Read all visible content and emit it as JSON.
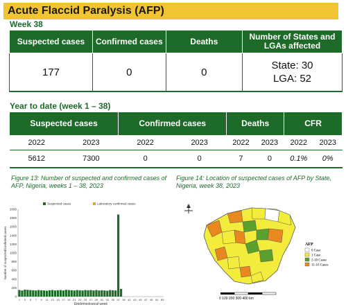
{
  "header": {
    "title": "Acute Flaccid Paralysis (AFP)"
  },
  "weekly": {
    "week_label": "Week 38",
    "headers": {
      "suspected": "Suspected cases",
      "confirmed": "Confirmed cases",
      "deaths": "Deaths",
      "states": "Number of States and LGAs affected"
    },
    "values": {
      "suspected": "177",
      "confirmed": "0",
      "deaths": "0",
      "states": "State: 30",
      "lgas": "LGA: 52"
    }
  },
  "ytd": {
    "label": "Year to date (week 1 – 38)",
    "headers": {
      "suspected": "Suspected cases",
      "confirmed": "Confirmed cases",
      "deaths": "Deaths",
      "cfr": "CFR"
    },
    "years": [
      "2022",
      "2023",
      "2022",
      "2023",
      "2022",
      "2023",
      "2022",
      "2023"
    ],
    "values": [
      "5612",
      "7300",
      "0",
      "0",
      "7",
      "0",
      "0.1%",
      "0%"
    ]
  },
  "figure13": {
    "caption": "Figure 13: Number of suspected and confirmed cases of AFP, Nigeria, weeks 1 – 38, 2023"
  },
  "figure14": {
    "caption": "Figure 14: Location of suspected cases of AFP by State, Nigeria, week 38, 2023",
    "legend_title": "AFP",
    "legend": [
      "0 Case",
      "1 Case",
      "2-10 Cases",
      "11-16 Cases"
    ],
    "scale_label": "0    100  200  300  400 km"
  },
  "colors": {
    "header_green": "#1e6a28",
    "title_yellow": "#f0c433",
    "suspected_bar": "#1e6a28",
    "confirmed_bar": "#e3a02d",
    "map_zero": "#ffffff",
    "map_one": "#f4ec3c",
    "map_two_ten": "#5aa02c",
    "map_eleven_sixteen": "#e8881e"
  },
  "chart_data": {
    "type": "bar",
    "title": "",
    "xlabel": "Epidemiological week",
    "ylabel": "Number of suspected/confirmed cases",
    "ylim": [
      0,
      2000
    ],
    "yticks": [
      0,
      200,
      400,
      600,
      800,
      1000,
      1200,
      1400,
      1600,
      1800,
      2000
    ],
    "xtick_labels": [
      "1",
      "3",
      "5",
      "7",
      "9",
      "11",
      "13",
      "15",
      "17",
      "19",
      "21",
      "23",
      "25",
      "27",
      "29",
      "31",
      "33",
      "35",
      "37",
      "39",
      "41",
      "43",
      "45",
      "47",
      "49",
      "51",
      "53"
    ],
    "categories": [
      1,
      2,
      3,
      4,
      5,
      6,
      7,
      8,
      9,
      10,
      11,
      12,
      13,
      14,
      15,
      16,
      17,
      18,
      19,
      20,
      21,
      22,
      23,
      24,
      25,
      26,
      27,
      28,
      29,
      30,
      31,
      32,
      33,
      34,
      35,
      36,
      37,
      38
    ],
    "series": [
      {
        "name": "Suspected cases",
        "values": [
          150,
          140,
          160,
          155,
          150,
          145,
          140,
          150,
          145,
          140,
          135,
          145,
          150,
          140,
          145,
          150,
          140,
          155,
          150,
          145,
          140,
          150,
          145,
          140,
          150,
          145,
          150,
          140,
          150,
          140,
          145,
          140,
          135,
          150,
          145,
          140,
          1880,
          177
        ]
      },
      {
        "name": "Laboratory confirmed cases",
        "values": [
          0,
          0,
          0,
          0,
          0,
          0,
          0,
          0,
          0,
          0,
          0,
          0,
          0,
          0,
          0,
          0,
          0,
          0,
          0,
          0,
          0,
          0,
          0,
          0,
          0,
          0,
          0,
          0,
          0,
          0,
          0,
          0,
          0,
          0,
          0,
          0,
          0,
          0
        ]
      }
    ],
    "legend_position": "top"
  }
}
